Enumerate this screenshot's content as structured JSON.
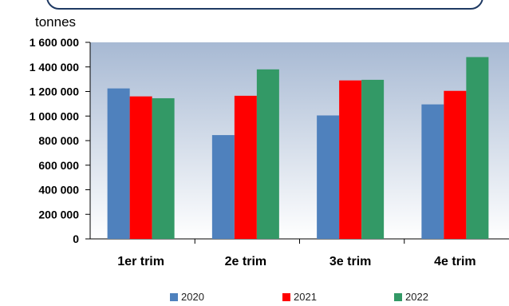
{
  "unit_label": "tonnes",
  "chart_data": {
    "type": "bar",
    "categories": [
      "1er trim",
      "2e trim",
      "3e trim",
      "4e trim"
    ],
    "series": [
      {
        "name": "2020",
        "color": "#4f81bd",
        "values": [
          1225000,
          845000,
          1005000,
          1095000
        ]
      },
      {
        "name": "2021",
        "color": "#ff0000",
        "values": [
          1160000,
          1165000,
          1290000,
          1205000
        ]
      },
      {
        "name": "2022",
        "color": "#339966",
        "values": [
          1145000,
          1380000,
          1295000,
          1480000
        ]
      }
    ],
    "ylim": [
      0,
      1600000
    ],
    "yticks": [
      0,
      200000,
      400000,
      600000,
      800000,
      1000000,
      1200000,
      1400000,
      1600000
    ],
    "ytick_labels": [
      "0",
      "200 000",
      "400 000",
      "600 000",
      "800 000",
      "1 000 000",
      "1 200 000",
      "1 400 000",
      "1 600 000"
    ],
    "legend_position": "bottom",
    "plot_background": "gradient light steel blue to white"
  }
}
